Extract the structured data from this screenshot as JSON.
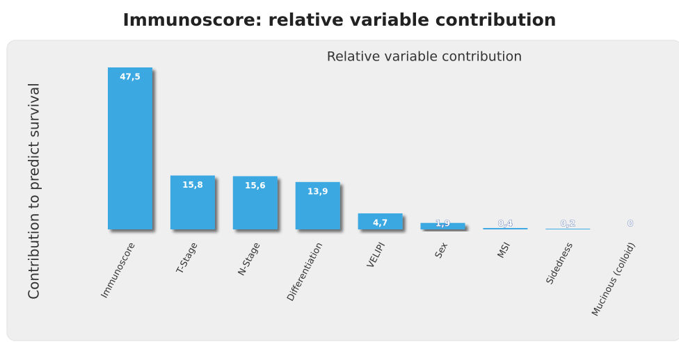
{
  "chart_data": {
    "type": "bar",
    "title": "Immunoscore: relative variable contribution",
    "subtitle": "Relative variable contribution",
    "y_label": "Contribution to predict survival",
    "categories": [
      "Immunoscore",
      "T-Stage",
      "N-Stage",
      "Differentiation",
      "VELIPI",
      "Sex",
      "MSI",
      "Sidedness",
      "Mucinous (colloid)"
    ],
    "values": [
      47.5,
      15.8,
      15.6,
      13.9,
      4.7,
      1.9,
      0.4,
      0.2,
      0
    ],
    "value_labels": [
      "47,5",
      "15,8",
      "15,6",
      "13,9",
      "4,7",
      "1,9",
      "0,4",
      "0,2",
      "0"
    ],
    "color": "#3aa8e2"
  }
}
